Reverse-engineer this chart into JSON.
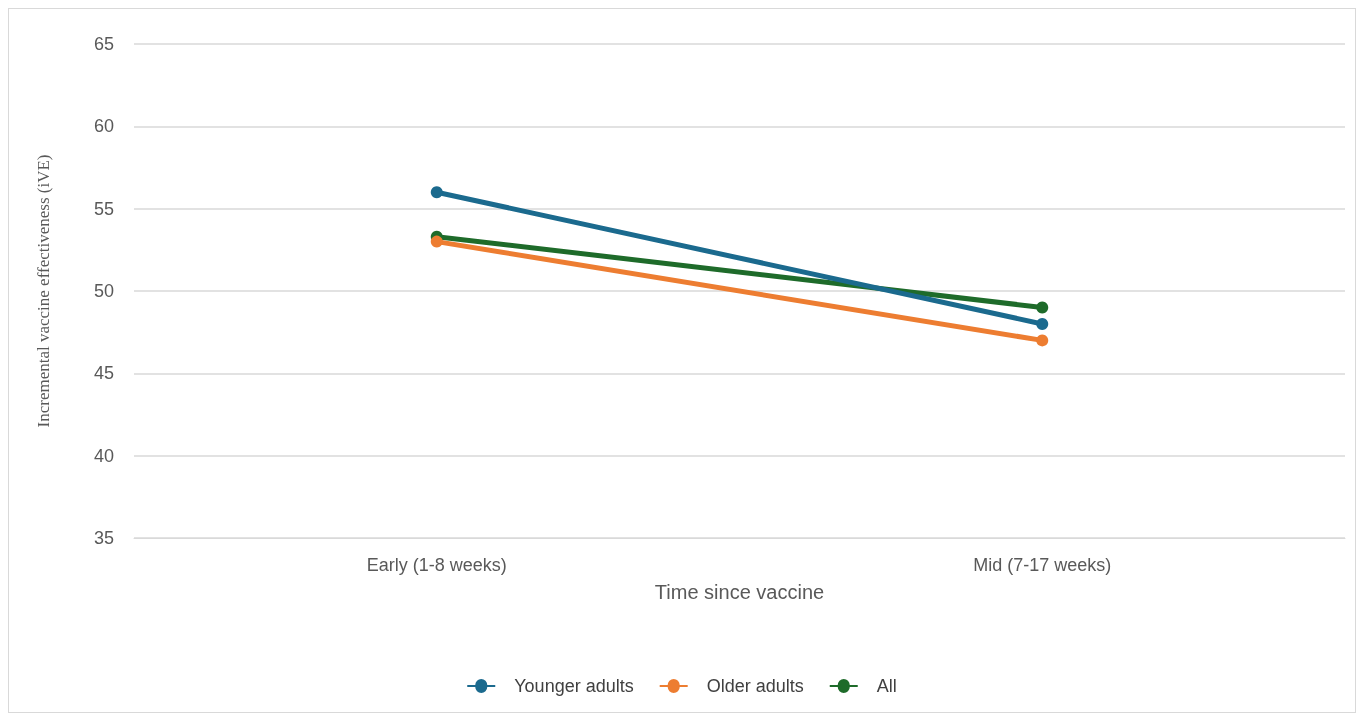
{
  "chart_data": {
    "type": "line",
    "xlabel": "Time since vaccine",
    "ylabel": "Incremental vaccine effectiveness (iVE)",
    "categories": [
      "Early (1-8 weeks)",
      "Mid (7-17 weeks)"
    ],
    "series": [
      {
        "name": "Younger adults",
        "color": "#1b6a8e",
        "values": [
          56,
          48
        ]
      },
      {
        "name": "Older adults",
        "color": "#ed7d31",
        "values": [
          53,
          47
        ]
      },
      {
        "name": "All",
        "color": "#1e6b2a",
        "values": [
          53.3,
          49
        ]
      }
    ],
    "ylim": [
      35,
      65
    ],
    "yticks": [
      35,
      40,
      45,
      50,
      55,
      60,
      65
    ],
    "grid": "y",
    "legend": "bottom",
    "marker": "circle",
    "line_style": "solid"
  }
}
